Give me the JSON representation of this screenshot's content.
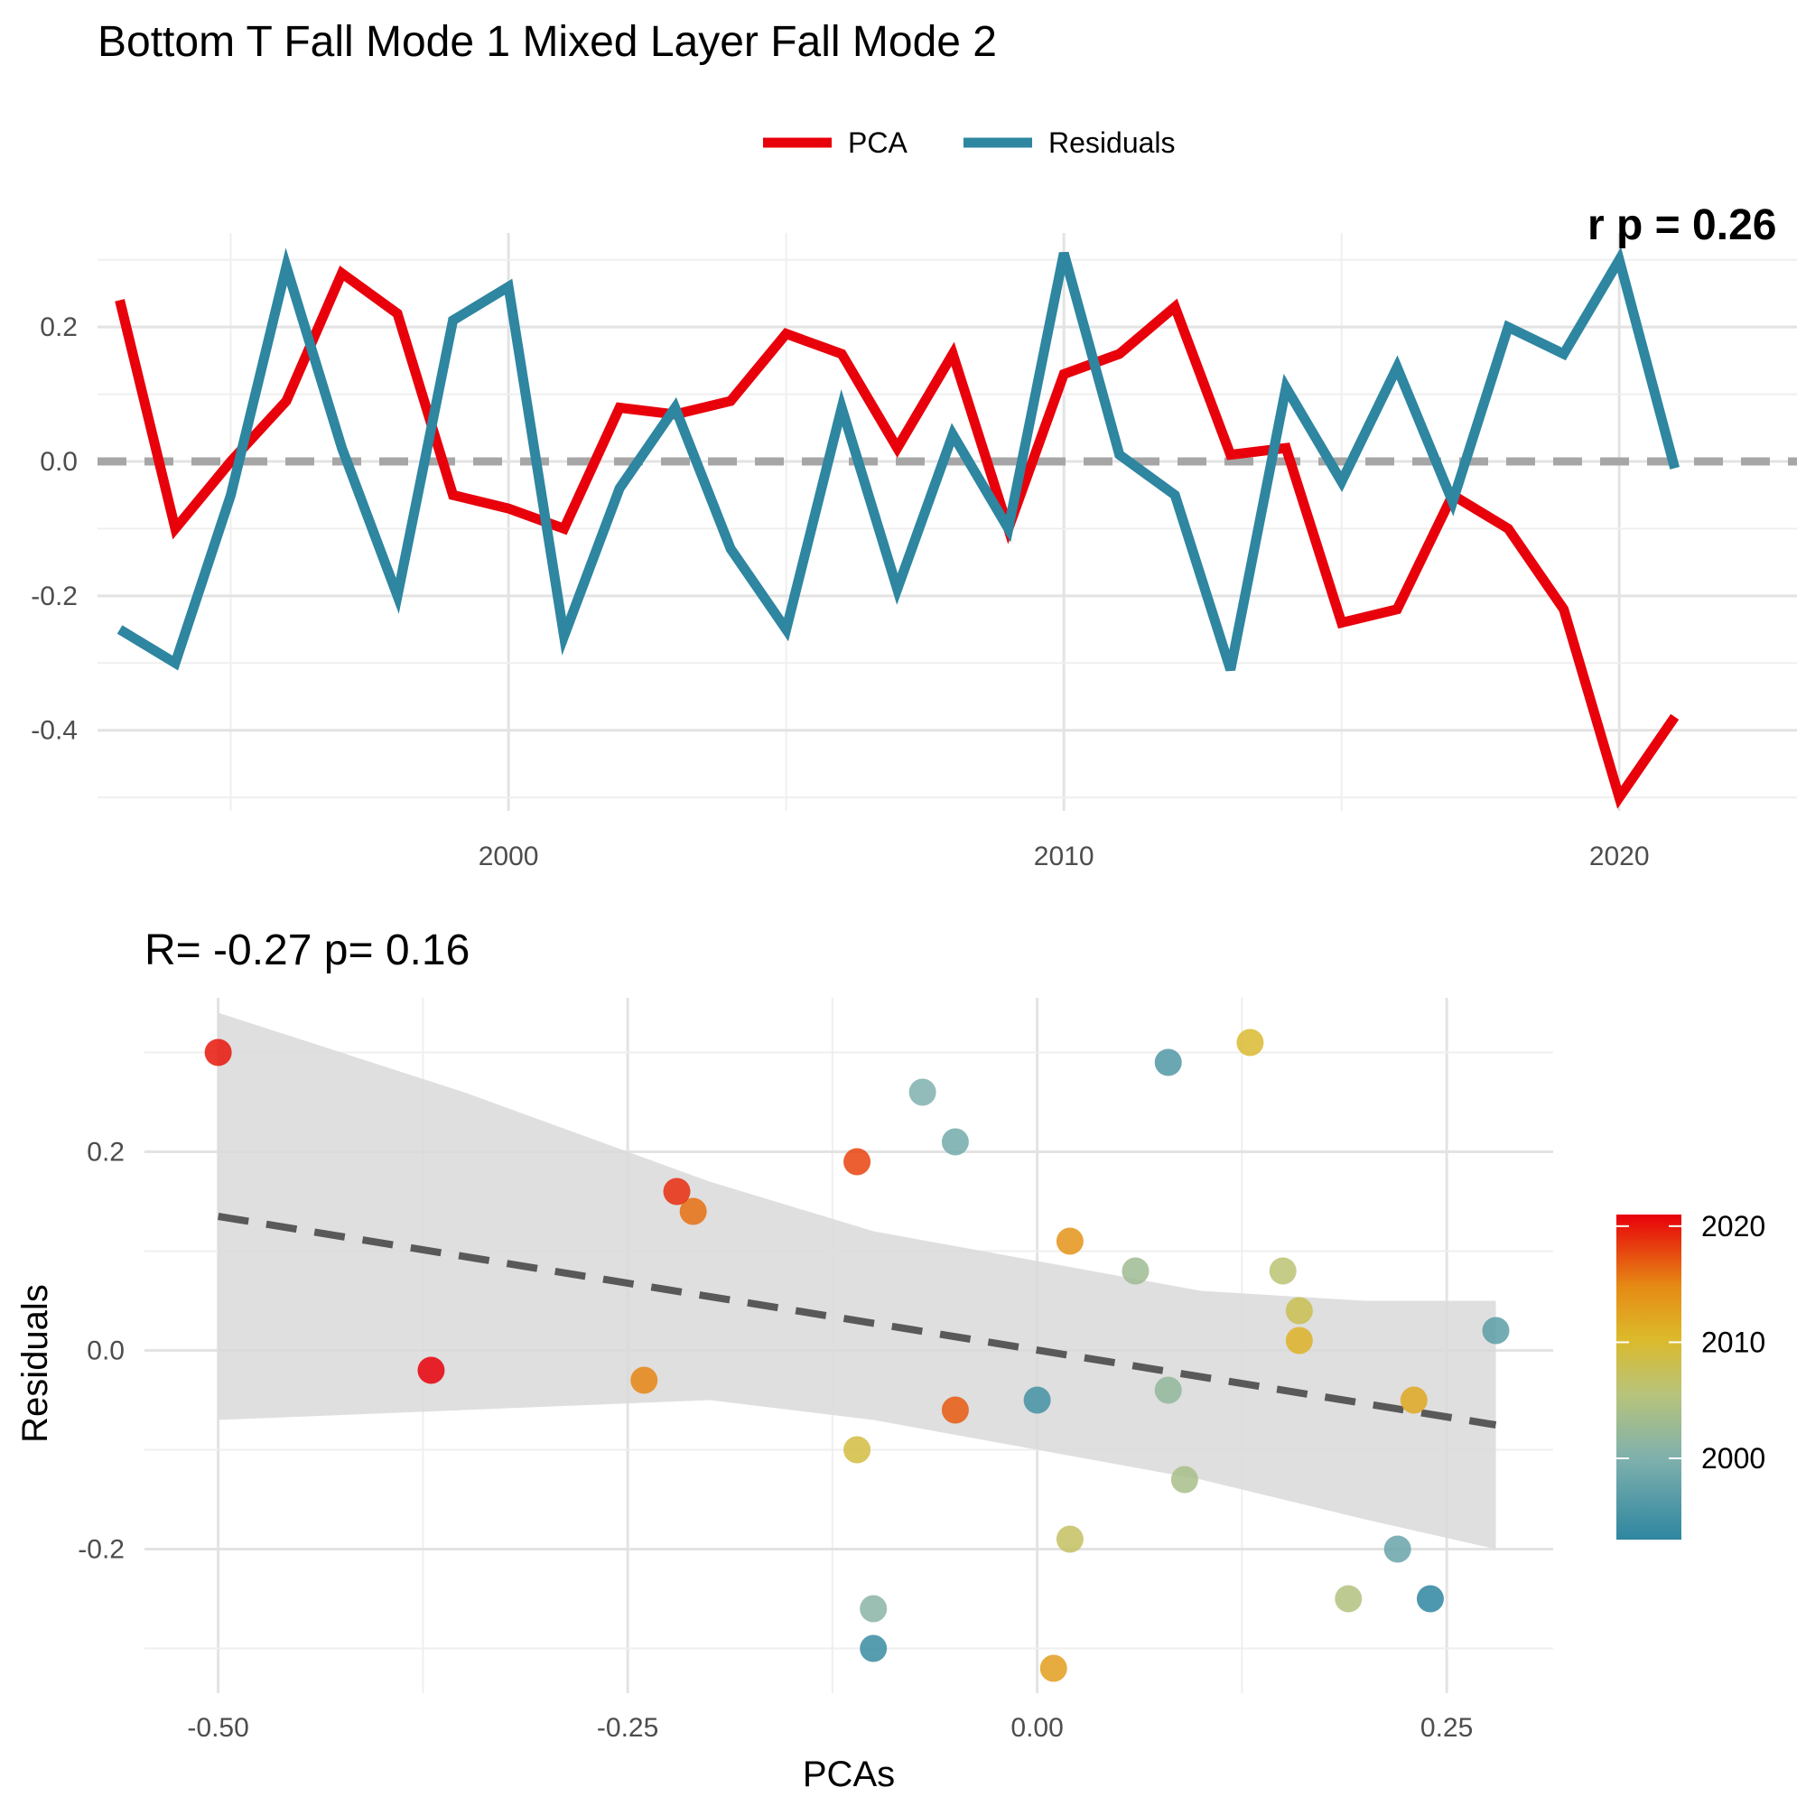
{
  "chart_data": [
    {
      "type": "line",
      "title": "Bottom T Fall Mode 1 Mixed Layer Fall Mode 2",
      "subtitle_partial": "r p = 0.26",
      "xlabel": "",
      "ylabel": "",
      "xlim": [
        1992.6,
        2023.2
      ],
      "ylim": [
        -0.52,
        0.34
      ],
      "x_ticks": [
        2000,
        2010,
        2020
      ],
      "x_tick_labels": [
        "2000",
        "2010",
        "2020"
      ],
      "y_ticks": [
        -0.4,
        -0.2,
        0.0,
        0.2
      ],
      "y_tick_labels": [
        "-0.4",
        "-0.2",
        "0.0",
        "0.2"
      ],
      "grid": true,
      "legend_position": "top",
      "reference_line": {
        "y": 0,
        "style": "dashed",
        "color": "#a6a6a6"
      },
      "x": [
        1993,
        1994,
        1995,
        1996,
        1997,
        1998,
        1999,
        2000,
        2001,
        2002,
        2003,
        2004,
        2005,
        2006,
        2007,
        2008,
        2009,
        2010,
        2011,
        2012,
        2013,
        2014,
        2015,
        2016,
        2017,
        2018,
        2019,
        2020,
        2021
      ],
      "series": [
        {
          "name": "PCA",
          "color": "#e8000b",
          "values": [
            0.24,
            -0.1,
            0.0,
            0.09,
            0.28,
            0.22,
            -0.05,
            -0.07,
            -0.1,
            0.08,
            0.07,
            0.09,
            0.19,
            0.16,
            0.02,
            0.16,
            -0.1,
            0.13,
            0.16,
            0.23,
            0.01,
            0.02,
            -0.24,
            -0.22,
            -0.05,
            -0.1,
            -0.22,
            -0.5,
            -0.38
          ]
        },
        {
          "name": "Residuals",
          "color": "#2e86a0",
          "values": [
            -0.25,
            -0.3,
            -0.05,
            0.29,
            0.02,
            -0.2,
            0.21,
            0.26,
            -0.26,
            -0.04,
            0.08,
            -0.13,
            -0.25,
            0.08,
            -0.19,
            0.04,
            -0.1,
            0.31,
            0.01,
            -0.05,
            -0.31,
            0.11,
            -0.03,
            0.14,
            -0.06,
            0.2,
            0.16,
            0.3,
            -0.01
          ]
        }
      ]
    },
    {
      "type": "scatter",
      "title": "R= -0.27  p= 0.16",
      "xlabel": "PCAs",
      "ylabel": "Residuals",
      "xlim": [
        -0.545,
        0.315
      ],
      "ylim": [
        -0.345,
        0.355
      ],
      "x_ticks": [
        -0.5,
        -0.25,
        0,
        0.25
      ],
      "x_tick_labels": [
        "-0.50",
        "-0.25",
        "0.00",
        "0.25"
      ],
      "y_ticks": [
        -0.2,
        0,
        0.2
      ],
      "y_tick_labels": [
        "-0.2",
        "0.0",
        "0.2"
      ],
      "grid": true,
      "regression": {
        "x": [
          -0.5,
          0.28
        ],
        "y": [
          0.135,
          -0.075
        ],
        "style": "dashed",
        "color": "#595959"
      },
      "ci_band": {
        "x": [
          -0.5,
          -0.35,
          -0.2,
          -0.1,
          0.0,
          0.1,
          0.2,
          0.28
        ],
        "upper": [
          0.34,
          0.26,
          0.17,
          0.12,
          0.09,
          0.06,
          0.05,
          0.05
        ],
        "lower": [
          -0.07,
          -0.06,
          -0.05,
          -0.07,
          -0.1,
          -0.13,
          -0.17,
          -0.2
        ]
      },
      "colorbar": {
        "title": "",
        "min": 1993,
        "max": 2021,
        "ticks": [
          2000,
          2010,
          2020
        ],
        "tick_labels": [
          "2000",
          "2010",
          "2020"
        ],
        "position": "right"
      },
      "points": [
        {
          "x": 0.24,
          "y": -0.25,
          "year": 1993
        },
        {
          "x": -0.1,
          "y": -0.3,
          "year": 1994
        },
        {
          "x": 0.0,
          "y": -0.05,
          "year": 1995
        },
        {
          "x": 0.08,
          "y": 0.29,
          "year": 1996
        },
        {
          "x": 0.28,
          "y": 0.02,
          "year": 1997
        },
        {
          "x": 0.22,
          "y": -0.2,
          "year": 1998
        },
        {
          "x": -0.05,
          "y": 0.21,
          "year": 1999
        },
        {
          "x": -0.07,
          "y": 0.26,
          "year": 2000
        },
        {
          "x": -0.1,
          "y": -0.26,
          "year": 2001
        },
        {
          "x": 0.08,
          "y": -0.04,
          "year": 2002
        },
        {
          "x": 0.06,
          "y": 0.08,
          "year": 2003
        },
        {
          "x": 0.09,
          "y": -0.13,
          "year": 2004
        },
        {
          "x": 0.19,
          "y": -0.25,
          "year": 2005
        },
        {
          "x": 0.15,
          "y": 0.08,
          "year": 2006
        },
        {
          "x": 0.02,
          "y": -0.19,
          "year": 2007
        },
        {
          "x": 0.16,
          "y": 0.04,
          "year": 2008
        },
        {
          "x": -0.11,
          "y": -0.1,
          "year": 2009
        },
        {
          "x": 0.13,
          "y": 0.31,
          "year": 2010
        },
        {
          "x": 0.16,
          "y": 0.01,
          "year": 2011
        },
        {
          "x": 0.23,
          "y": -0.05,
          "year": 2012
        },
        {
          "x": 0.01,
          "y": -0.32,
          "year": 2013
        },
        {
          "x": 0.02,
          "y": 0.11,
          "year": 2014
        },
        {
          "x": -0.24,
          "y": -0.03,
          "year": 2015
        },
        {
          "x": -0.21,
          "y": 0.14,
          "year": 2016
        },
        {
          "x": -0.05,
          "y": -0.06,
          "year": 2017
        },
        {
          "x": -0.11,
          "y": 0.19,
          "year": 2018
        },
        {
          "x": -0.22,
          "y": 0.16,
          "year": 2019
        },
        {
          "x": -0.5,
          "y": 0.3,
          "year": 2020
        },
        {
          "x": -0.37,
          "y": -0.02,
          "year": 2021
        }
      ]
    }
  ]
}
